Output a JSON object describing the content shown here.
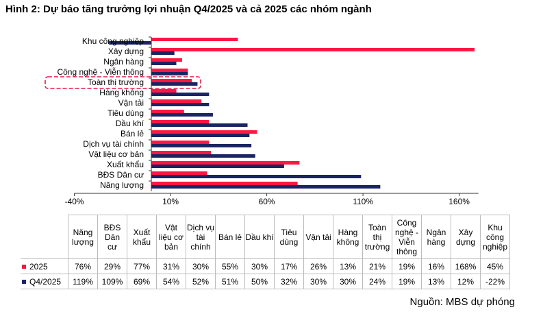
{
  "title": "Hình 2: Dự báo tăng trưởng lợi nhuận Q4/2025 và cả 2025 các nhóm ngành",
  "source": "Nguồn: MBS dự phóng",
  "chart_data": {
    "type": "bar",
    "orientation": "horizontal",
    "categories": [
      "Khu công nghiệp",
      "Xây dựng",
      "Ngân hàng",
      "Công nghệ - Viễn thông",
      "Toàn thị trường",
      "Hàng không",
      "Vận tải",
      "Tiêu dùng",
      "Dầu khí",
      "Bán lẻ",
      "Dịch vụ tài chính",
      "Vật liệu cơ bản",
      "Xuất khẩu",
      "BĐS Dân cư",
      "Năng lượng"
    ],
    "series": [
      {
        "name": "2025",
        "color": "#ff1744",
        "values": [
          45,
          168,
          16,
          19,
          21,
          13,
          26,
          17,
          30,
          55,
          30,
          31,
          77,
          29,
          76
        ]
      },
      {
        "name": "Q4/2025",
        "color": "#1a2463",
        "values": [
          -22,
          12,
          13,
          19,
          24,
          30,
          30,
          32,
          50,
          51,
          52,
          54,
          69,
          109,
          119
        ]
      }
    ],
    "xlim": [
      -40,
      170
    ],
    "xticks": [
      "-40%",
      "10%",
      "60%",
      "110%",
      "160%"
    ],
    "xtick_values": [
      -40,
      10,
      60,
      110,
      160
    ],
    "highlight": "Toàn thị trường",
    "highlight_color": "#e8194a"
  },
  "table": {
    "headers": [
      [
        "Năng",
        "lượng"
      ],
      [
        "BĐS",
        "Dân",
        "cư"
      ],
      [
        "Xuất",
        "khẩu"
      ],
      [
        "Vật",
        "liệu cơ",
        "bản"
      ],
      [
        "Dịch vụ",
        "tài",
        "chính"
      ],
      [
        "Bán lẻ"
      ],
      [
        "Dầu khí"
      ],
      [
        "Tiêu",
        "dùng"
      ],
      [
        "Vận tải"
      ],
      [
        "Hàng",
        "không"
      ],
      [
        "Toàn",
        "thị",
        "trường"
      ],
      [
        "Công",
        "nghệ -",
        "Viễn",
        "thông"
      ],
      [
        "Ngân",
        "hàng"
      ],
      [
        "Xây",
        "dựng"
      ],
      [
        "Khu",
        "công",
        "nghiệp"
      ]
    ],
    "rows": [
      {
        "label": "2025",
        "color": "#ff1744",
        "values": [
          "76%",
          "29%",
          "77%",
          "31%",
          "30%",
          "55%",
          "30%",
          "17%",
          "26%",
          "13%",
          "21%",
          "19%",
          "16%",
          "168%",
          "45%"
        ]
      },
      {
        "label": "Q4/2025",
        "color": "#1a2463",
        "values": [
          "119%",
          "109%",
          "69%",
          "54%",
          "52%",
          "51%",
          "50%",
          "32%",
          "30%",
          "30%",
          "24%",
          "19%",
          "13%",
          "12%",
          "-22%"
        ]
      }
    ]
  }
}
